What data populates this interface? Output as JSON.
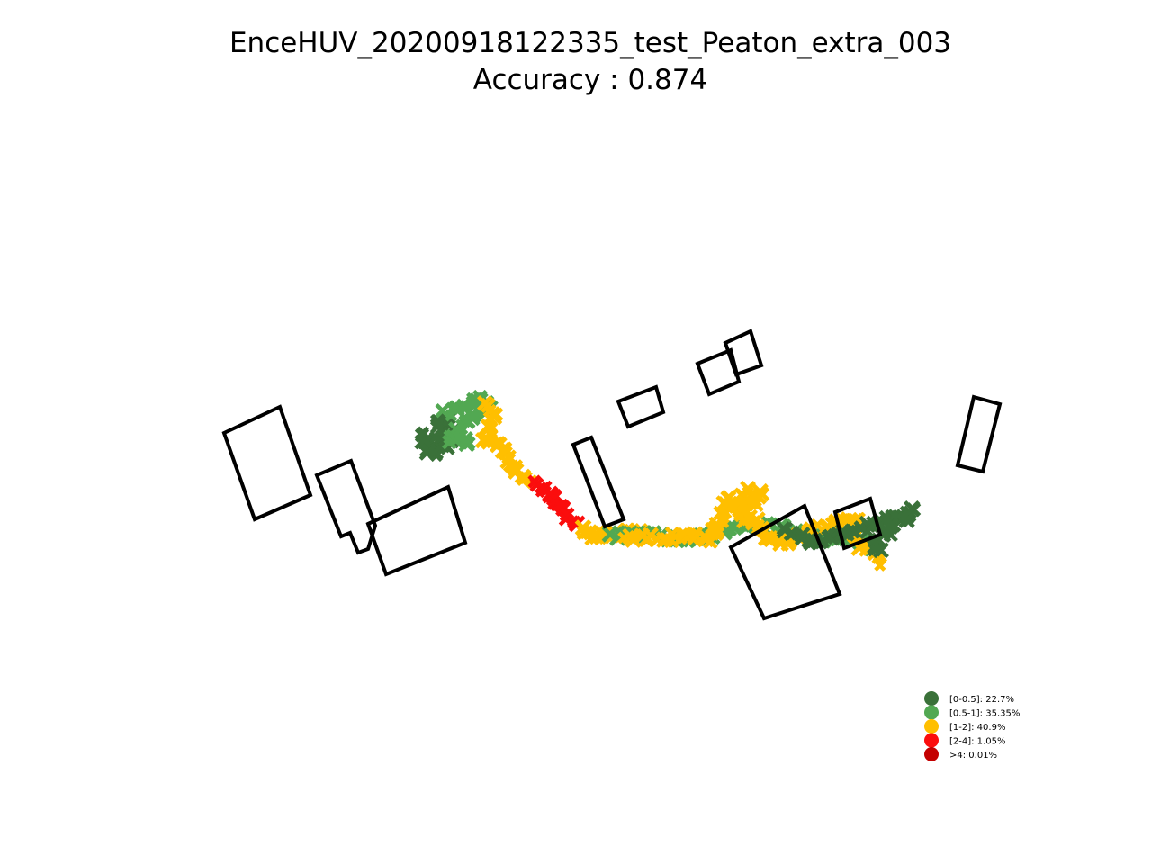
{
  "chart_data": {
    "type": "scatter",
    "title": "EnceHUV_20200918122335_test_Peaton_extra_003",
    "subtitle": "Accuracy : 0.874",
    "accuracy": 0.874,
    "axes_visible": false,
    "grid": false,
    "legend_placement": "lower-right",
    "categories": [
      {
        "label": "[0-0.5]: 22.7%",
        "range": "[0-0.5]",
        "percent": 22.7,
        "color": "#3a7139"
      },
      {
        "label": "[0.5-1]: 35.35%",
        "range": "[0.5-1]",
        "percent": 35.35,
        "color": "#52a852"
      },
      {
        "label": "[1-2]: 40.9%",
        "range": "[1-2]",
        "percent": 40.9,
        "color": "#ffbf00"
      },
      {
        "label": "[2-4]: 1.05%",
        "range": "[2-4]",
        "percent": 1.05,
        "color": "#fb0d0d"
      },
      {
        "label": ">4: 0.01%",
        "range": ">4",
        "percent": 0.01,
        "color": "#c40000"
      }
    ],
    "marker": "x",
    "trajectory_segments": [
      {
        "class": 0,
        "points": [
          [
            470,
            480
          ],
          [
            475,
            500
          ],
          [
            490,
            495
          ],
          [
            485,
            470
          ],
          [
            500,
            465
          ],
          [
            505,
            490
          ],
          [
            480,
            505
          ]
        ]
      },
      {
        "class": 1,
        "points": [
          [
            495,
            460
          ],
          [
            510,
            455
          ],
          [
            525,
            450
          ],
          [
            535,
            445
          ],
          [
            545,
            450
          ],
          [
            520,
            465
          ],
          [
            500,
            488
          ],
          [
            515,
            490
          ],
          [
            525,
            492
          ]
        ]
      },
      {
        "class": 2,
        "points": [
          [
            540,
            450
          ],
          [
            548,
            458
          ],
          [
            540,
            490
          ],
          [
            550,
            492
          ],
          [
            560,
            497
          ],
          [
            565,
            510
          ],
          [
            572,
            520
          ],
          [
            580,
            530
          ],
          [
            590,
            535
          ]
        ]
      },
      {
        "class": 3,
        "points": [
          [
            596,
            538
          ],
          [
            604,
            543
          ],
          [
            612,
            550
          ],
          [
            618,
            558
          ],
          [
            622,
            565
          ],
          [
            630,
            572
          ],
          [
            640,
            582
          ]
        ]
      },
      {
        "class": 2,
        "points": [
          [
            645,
            585
          ],
          [
            655,
            592
          ],
          [
            665,
            595
          ],
          [
            675,
            597
          ],
          [
            690,
            592
          ],
          [
            700,
            590
          ],
          [
            710,
            590
          ]
        ]
      },
      {
        "class": 1,
        "points": [
          [
            680,
            595
          ],
          [
            720,
            593
          ],
          [
            735,
            597
          ],
          [
            750,
            598
          ],
          [
            765,
            597
          ],
          [
            780,
            596
          ],
          [
            795,
            594
          ],
          [
            810,
            590
          ],
          [
            825,
            585
          ],
          [
            840,
            583
          ],
          [
            855,
            585
          ],
          [
            870,
            588
          ],
          [
            885,
            592
          ],
          [
            900,
            596
          ],
          [
            915,
            600
          ],
          [
            930,
            598
          ],
          [
            945,
            595
          ],
          [
            960,
            600
          ],
          [
            970,
            610
          ]
        ]
      },
      {
        "class": 2,
        "points": [
          [
            695,
            596
          ],
          [
            790,
            598
          ],
          [
            810,
            555
          ],
          [
            820,
            565
          ],
          [
            830,
            545
          ],
          [
            845,
            550
          ],
          [
            825,
            575
          ],
          [
            840,
            580
          ],
          [
            855,
            600
          ],
          [
            870,
            602
          ],
          [
            940,
            575
          ],
          [
            955,
            580
          ],
          [
            945,
            595
          ],
          [
            980,
            625
          ]
        ]
      },
      {
        "class": 0,
        "points": [
          [
            870,
            590
          ],
          [
            905,
            602
          ],
          [
            950,
            590
          ],
          [
            965,
            585
          ],
          [
            980,
            580
          ],
          [
            995,
            575
          ],
          [
            1008,
            570
          ],
          [
            1015,
            568
          ],
          [
            970,
            605
          ],
          [
            975,
            615
          ]
        ]
      }
    ],
    "building_outlines": [
      [
        [
          249,
          481
        ],
        [
          311,
          452
        ],
        [
          345,
          550
        ],
        [
          283,
          577
        ]
      ],
      [
        [
          352,
          528
        ],
        [
          390,
          512
        ],
        [
          417,
          584
        ],
        [
          409,
          610
        ],
        [
          398,
          614
        ],
        [
          389,
          592
        ],
        [
          379,
          596
        ]
      ],
      [
        [
          409,
          582
        ],
        [
          498,
          541
        ],
        [
          517,
          603
        ],
        [
          429,
          638
        ]
      ],
      [
        [
          637,
          494
        ],
        [
          657,
          486
        ],
        [
          693,
          577
        ],
        [
          672,
          585
        ]
      ],
      [
        [
          687,
          446
        ],
        [
          729,
          430
        ],
        [
          737,
          458
        ],
        [
          698,
          474
        ]
      ],
      [
        [
          775,
          404
        ],
        [
          812,
          389
        ],
        [
          821,
          424
        ],
        [
          788,
          438
        ]
      ],
      [
        [
          806,
          381
        ],
        [
          834,
          368
        ],
        [
          846,
          406
        ],
        [
          818,
          416
        ]
      ],
      [
        [
          812,
          608
        ],
        [
          894,
          562
        ],
        [
          933,
          660
        ],
        [
          849,
          687
        ]
      ],
      [
        [
          928,
          569
        ],
        [
          967,
          554
        ],
        [
          978,
          594
        ],
        [
          938,
          609
        ]
      ],
      [
        [
          1082,
          441
        ],
        [
          1111,
          449
        ],
        [
          1092,
          524
        ],
        [
          1064,
          517
        ]
      ]
    ]
  }
}
